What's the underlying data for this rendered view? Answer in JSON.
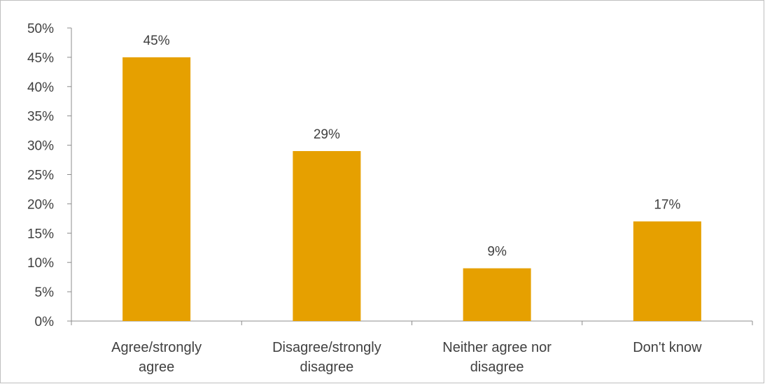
{
  "chart_data": {
    "type": "bar",
    "categories": [
      [
        "Agree/strongly",
        "agree"
      ],
      [
        "Disagree/strongly",
        "disagree"
      ],
      [
        "Neither agree nor",
        "disagree"
      ],
      [
        "Don't know"
      ]
    ],
    "values": [
      45,
      29,
      9,
      17
    ],
    "data_labels": [
      "45%",
      "29%",
      "9%",
      "17%"
    ],
    "y_ticks": [
      "0%",
      "5%",
      "10%",
      "15%",
      "20%",
      "25%",
      "30%",
      "35%",
      "40%",
      "45%",
      "50%"
    ],
    "ylim": [
      0,
      50
    ],
    "grid": false,
    "legend": "none",
    "bar_color": "#E6A000",
    "axis_color": "#8c8c8c",
    "text_color": "#404040"
  }
}
